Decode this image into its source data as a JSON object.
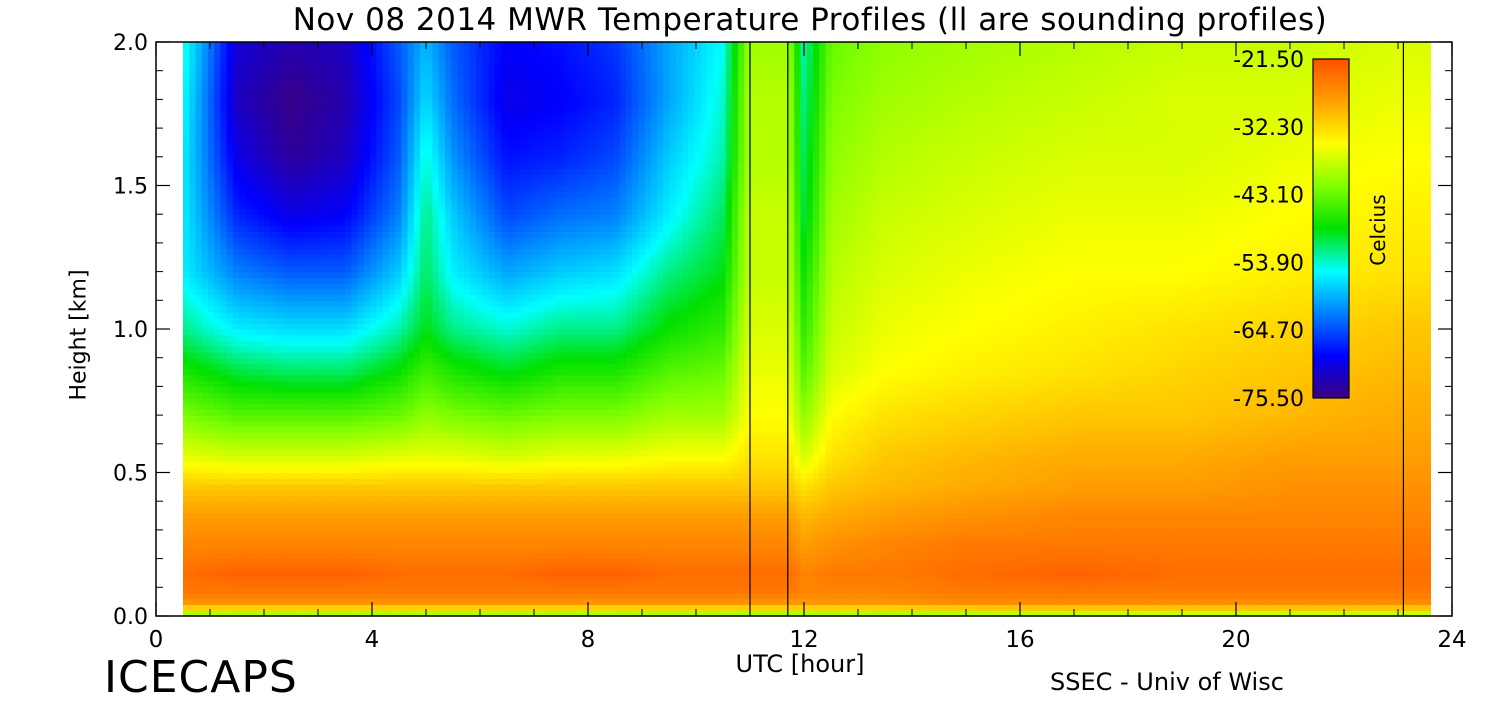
{
  "title": "Nov 08 2014 MWR Temperature Profiles (ll are sounding profiles)",
  "footer_left": "ICECAPS",
  "footer_right": "SSEC - Univ of Wisc",
  "chart_data": {
    "type": "heatmap",
    "title": "Nov 08 2014 MWR Temperature Profiles (ll are sounding profiles)",
    "xlabel": "UTC [hour]",
    "ylabel": "Height [km]",
    "xlim": [
      0,
      24
    ],
    "ylim": [
      0.0,
      2.0
    ],
    "x_ticks": [
      0,
      4,
      8,
      12,
      16,
      20,
      24
    ],
    "y_ticks": [
      0.0,
      0.5,
      1.0,
      1.5,
      2.0
    ],
    "x_tick_labels": [
      "0",
      "4",
      "8",
      "12",
      "16",
      "20",
      "24"
    ],
    "y_tick_labels": [
      "0.0",
      "0.5",
      "1.0",
      "1.5",
      "2.0"
    ],
    "data_x_range": [
      0.5,
      23.6
    ],
    "sounding_times": [
      11.0,
      11.7,
      23.1
    ],
    "colorbar": {
      "label": "Celcius",
      "min": -75.5,
      "max": -21.5,
      "tick_values": [
        -21.5,
        -32.3,
        -43.1,
        -53.9,
        -64.7,
        -75.5
      ],
      "tick_labels": [
        "-21.50",
        "-32.30",
        "-43.10",
        "-53.90",
        "-64.70",
        "-75.50"
      ],
      "colors": [
        "#3b007f",
        "#0000ff",
        "#0080ff",
        "#00ffff",
        "#00e000",
        "#80ff00",
        "#ffff00",
        "#ffa000",
        "#ff5000"
      ]
    },
    "grid": false,
    "temperature_profiles": {
      "description_units": "Celcius",
      "heights_km": [
        0.0,
        0.04,
        0.08,
        0.15,
        0.25,
        0.35,
        0.45,
        0.55,
        0.7,
        0.85,
        1.0,
        1.2,
        1.4,
        1.6,
        1.8,
        2.0
      ],
      "times_hour": [
        0.5,
        1.5,
        2.5,
        3.5,
        4.5,
        5.0,
        5.5,
        6.5,
        7.5,
        8.5,
        9.5,
        10.5,
        11.0,
        11.7,
        12.0,
        12.5,
        13.5,
        15,
        17,
        19,
        21,
        23,
        23.6
      ],
      "values": [
        [
          -43,
          -28,
          -25,
          -24,
          -26,
          -28,
          -31,
          -36,
          -42,
          -47,
          -52,
          -56,
          -56,
          -56,
          -55,
          -54
        ],
        [
          -43,
          -28,
          -25,
          -23,
          -26,
          -28,
          -31,
          -37,
          -44,
          -50,
          -56,
          -62,
          -67,
          -70,
          -72,
          -71
        ],
        [
          -43,
          -28,
          -25,
          -23,
          -26,
          -28,
          -31,
          -37,
          -44,
          -51,
          -57,
          -64,
          -70,
          -74,
          -75,
          -73
        ],
        [
          -43,
          -28,
          -25,
          -23,
          -26,
          -28,
          -31,
          -37,
          -44,
          -51,
          -57,
          -64,
          -69,
          -72,
          -73,
          -72
        ],
        [
          -43,
          -28,
          -25,
          -24,
          -26,
          -28,
          -31,
          -36,
          -43,
          -48,
          -53,
          -58,
          -62,
          -64,
          -65,
          -64
        ],
        [
          -43,
          -28,
          -25,
          -24,
          -26,
          -28,
          -31,
          -36,
          -41,
          -45,
          -49,
          -51,
          -52,
          -54,
          -57,
          -59
        ],
        [
          -43,
          -28,
          -25,
          -24,
          -26,
          -28,
          -31,
          -36,
          -42,
          -47,
          -52,
          -56,
          -58,
          -61,
          -63,
          -64
        ],
        [
          -43,
          -28,
          -25,
          -24,
          -26,
          -28,
          -31,
          -37,
          -43,
          -49,
          -54,
          -60,
          -65,
          -68,
          -70,
          -69
        ],
        [
          -43,
          -28,
          -25,
          -23,
          -26,
          -28,
          -31,
          -36,
          -42,
          -47,
          -52,
          -58,
          -63,
          -67,
          -69,
          -68
        ],
        [
          -43,
          -28,
          -25,
          -23,
          -26,
          -28,
          -31,
          -36,
          -42,
          -47,
          -52,
          -57,
          -62,
          -65,
          -67,
          -66
        ],
        [
          -43,
          -28,
          -25,
          -24,
          -26,
          -28,
          -31,
          -35,
          -40,
          -44,
          -48,
          -52,
          -56,
          -58,
          -60,
          -60
        ],
        [
          -43,
          -28,
          -25,
          -24,
          -26,
          -28,
          -31,
          -35,
          -40,
          -43,
          -46,
          -49,
          -51,
          -53,
          -54,
          -55
        ],
        [
          -43,
          -28,
          -25,
          -24,
          -26,
          -28,
          -31,
          -33,
          -35,
          -36,
          -37,
          -38,
          -38,
          -39,
          -39,
          -40
        ],
        [
          -43,
          -28,
          -25,
          -24,
          -26,
          -28,
          -31,
          -33,
          -35,
          -36,
          -37,
          -38,
          -38,
          -39,
          -39,
          -40
        ],
        [
          -43,
          -28,
          -26,
          -26,
          -28,
          -30,
          -33,
          -37,
          -41,
          -44,
          -46,
          -48,
          -50,
          -51,
          -52,
          -53
        ],
        [
          -43,
          -28,
          -26,
          -25,
          -27,
          -29,
          -31,
          -33,
          -35,
          -37,
          -38,
          -39,
          -40,
          -41,
          -42,
          -43
        ],
        [
          -43,
          -28,
          -26,
          -25,
          -26,
          -28,
          -30,
          -31,
          -33,
          -35,
          -36,
          -37,
          -38,
          -39,
          -40,
          -41
        ],
        [
          -43,
          -27,
          -25,
          -24,
          -25,
          -27,
          -29,
          -30,
          -32,
          -34,
          -35,
          -36,
          -37,
          -38,
          -39,
          -40
        ],
        [
          -42,
          -27,
          -25,
          -23,
          -25,
          -26,
          -28,
          -29,
          -31,
          -33,
          -34,
          -35,
          -36,
          -37,
          -38,
          -39
        ],
        [
          -42,
          -27,
          -25,
          -24,
          -25,
          -26,
          -28,
          -29,
          -31,
          -32,
          -33,
          -35,
          -36,
          -37,
          -37,
          -38
        ],
        [
          -42,
          -27,
          -25,
          -24,
          -25,
          -26,
          -27,
          -28,
          -30,
          -31,
          -32,
          -34,
          -35,
          -36,
          -37,
          -38
        ],
        [
          -42,
          -27,
          -25,
          -24,
          -25,
          -26,
          -27,
          -28,
          -29,
          -30,
          -31,
          -33,
          -34,
          -35,
          -36,
          -37
        ],
        [
          -42,
          -27,
          -25,
          -24,
          -25,
          -26,
          -27,
          -28,
          -29,
          -30,
          -31,
          -33,
          -34,
          -35,
          -36,
          -37
        ]
      ]
    }
  }
}
